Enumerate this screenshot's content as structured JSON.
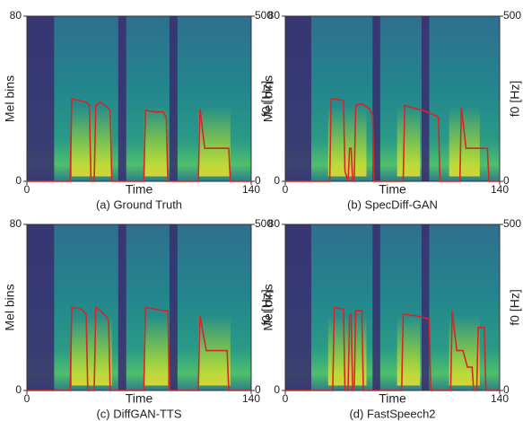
{
  "chart_data": [
    {
      "type": "line",
      "caption": "(a) Ground Truth",
      "xlabel": "Time",
      "ylabel": "Mel bins",
      "y2label": "f0 [Hz]",
      "xlim": [
        0,
        140
      ],
      "xticks": [
        0,
        140
      ],
      "ylim": [
        0,
        80
      ],
      "yticks": [
        0,
        80
      ],
      "y2lim": [
        0,
        500
      ],
      "y2ticks": [
        0,
        500
      ],
      "x": [
        0,
        27,
        28,
        37,
        39,
        40,
        42,
        43,
        46,
        50,
        52,
        53,
        73,
        74,
        80,
        85,
        87,
        88,
        107,
        108,
        111,
        126,
        127,
        140
      ],
      "series": [
        {
          "axis": "y2",
          "color": "#d62728",
          "values": [
            0,
            0,
            250,
            240,
            230,
            0,
            0,
            230,
            240,
            225,
            215,
            0,
            0,
            215,
            210,
            210,
            195,
            0,
            0,
            220,
            100,
            100,
            0,
            0
          ]
        }
      ]
    },
    {
      "type": "line",
      "caption": "(b) SpecDiff-GAN",
      "xlabel": "Time",
      "ylabel": "Mel bins",
      "y2label": "f0 [Hz]",
      "xlim": [
        0,
        140
      ],
      "xticks": [
        0,
        140
      ],
      "ylim": [
        0,
        80
      ],
      "yticks": [
        0,
        80
      ],
      "y2lim": [
        0,
        500
      ],
      "y2ticks": [
        0,
        500
      ],
      "x": [
        0,
        29,
        30,
        38,
        39,
        41,
        42,
        43,
        44,
        45,
        46,
        50,
        55,
        57,
        58,
        77,
        78,
        85,
        90,
        95,
        100,
        101,
        114,
        115,
        118,
        132,
        133,
        140
      ],
      "series": [
        {
          "axis": "y2",
          "color": "#d62728",
          "values": [
            0,
            0,
            250,
            245,
            30,
            0,
            100,
            100,
            0,
            0,
            230,
            235,
            220,
            200,
            0,
            0,
            230,
            220,
            215,
            205,
            195,
            0,
            0,
            225,
            100,
            100,
            0,
            0
          ]
        }
      ]
    },
    {
      "type": "line",
      "caption": "(c) DiffGAN-TTS",
      "xlabel": "Time",
      "ylabel": "Mel bins",
      "y2label": "f0 [Hz]",
      "xlim": [
        0,
        140
      ],
      "xticks": [
        0,
        140
      ],
      "ylim": [
        0,
        80
      ],
      "yticks": [
        0,
        80
      ],
      "y2lim": [
        0,
        500
      ],
      "y2ticks": [
        0,
        500
      ],
      "x": [
        0,
        27,
        28,
        34,
        37,
        38,
        42,
        43,
        46,
        50,
        51,
        52,
        73,
        74,
        80,
        85,
        88,
        89,
        107,
        108,
        112,
        125,
        126,
        140
      ],
      "series": [
        {
          "axis": "y2",
          "color": "#d62728",
          "values": [
            0,
            0,
            250,
            245,
            230,
            0,
            0,
            250,
            240,
            220,
            210,
            0,
            0,
            250,
            245,
            240,
            240,
            0,
            0,
            225,
            120,
            120,
            0,
            0
          ]
        }
      ]
    },
    {
      "type": "line",
      "caption": "(d) FastSpeech2",
      "xlabel": "Time",
      "ylabel": "Mel bins",
      "y2label": "f0 [Hz]",
      "xlim": [
        0,
        140
      ],
      "xticks": [
        0,
        140
      ],
      "ylim": [
        0,
        80
      ],
      "yticks": [
        0,
        80
      ],
      "y2lim": [
        0,
        500
      ],
      "y2ticks": [
        0,
        500
      ],
      "x": [
        0,
        31,
        32,
        38,
        39,
        41,
        42,
        43,
        44,
        45,
        46,
        50,
        51,
        76,
        77,
        85,
        90,
        94,
        95,
        108,
        109,
        112,
        116,
        119,
        122,
        123,
        125,
        126,
        130,
        131,
        140
      ],
      "series": [
        {
          "axis": "y2",
          "color": "#d62728",
          "values": [
            0,
            0,
            250,
            245,
            0,
            0,
            230,
            230,
            0,
            0,
            240,
            240,
            0,
            0,
            230,
            225,
            220,
            215,
            0,
            0,
            240,
            120,
            120,
            70,
            70,
            0,
            0,
            190,
            190,
            0,
            0
          ]
        }
      ]
    }
  ]
}
